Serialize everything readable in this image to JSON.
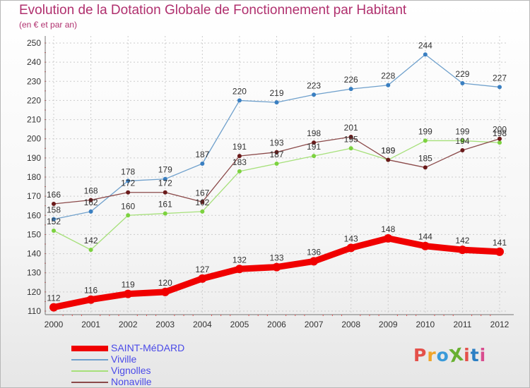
{
  "page": {
    "title": "Evolution de la Dotation Globale de Fonctionnement par Habitant",
    "subtitle": "(en € et par an)",
    "logo_text": "ProXiti"
  },
  "colors": {
    "title": "#b0306e",
    "axis": "#333333",
    "grid": "#cccccc",
    "legend_text": "#4a4ae8",
    "logo_letters": [
      "#e4504a",
      "#f0a42a",
      "#3a9ad9",
      "#68b030",
      "#e4504a",
      "#2b7fc4",
      "#d94d8f"
    ]
  },
  "chart_data": {
    "type": "line",
    "title": "Evolution de la Dotation Globale de Fonctionnement par Habitant",
    "subtitle": "(en € et par an)",
    "xlabel": "",
    "ylabel": "",
    "x": [
      "2000",
      "2001",
      "2002",
      "2003",
      "2004",
      "2005",
      "2006",
      "2007",
      "2008",
      "2009",
      "2010",
      "2011",
      "2012"
    ],
    "ylim": [
      110,
      250
    ],
    "yticks": [
      110,
      120,
      130,
      140,
      150,
      160,
      170,
      180,
      190,
      200,
      210,
      220,
      230,
      240,
      250
    ],
    "grid": true,
    "legend_position": "bottom-left",
    "series": [
      {
        "name": "SAINT-MéDARD",
        "color": "#f00000",
        "thick": true,
        "values": [
          112,
          116,
          119,
          120,
          127,
          132,
          133,
          136,
          143,
          148,
          144,
          142,
          141
        ]
      },
      {
        "name": "Viville",
        "color": "#6fa0cc",
        "marker": "#3a7fc1",
        "thick": false,
        "values": [
          158,
          162,
          178,
          179,
          187,
          220,
          219,
          223,
          226,
          228,
          244,
          229,
          227
        ]
      },
      {
        "name": "Vignolles",
        "color": "#a6e07a",
        "marker": "#7cd23f",
        "thick": false,
        "values": [
          152,
          142,
          160,
          161,
          162,
          183,
          187,
          191,
          195,
          189,
          199,
          199,
          198
        ]
      },
      {
        "name": "Nonaville",
        "color": "#8b4a4a",
        "marker": "#6a1a1a",
        "thick": false,
        "values": [
          166,
          168,
          172,
          172,
          167,
          191,
          193,
          198,
          201,
          189,
          185,
          194,
          200
        ]
      }
    ]
  }
}
